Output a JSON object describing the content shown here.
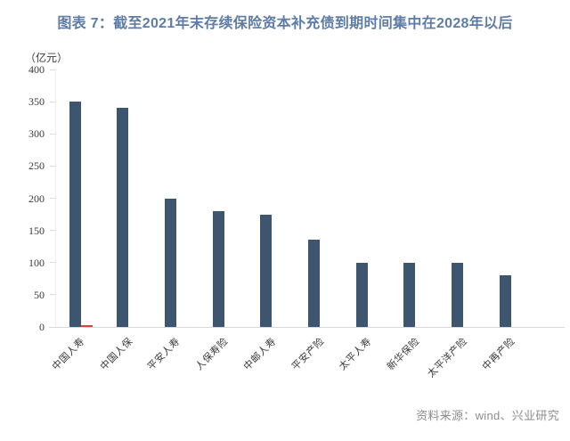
{
  "chart": {
    "title": "图表 7：截至2021年末存续保险资本补充债到期时间集中在2028年以后",
    "unit_label": "（亿元）",
    "source": "资料来源：wind、兴业研究"
  },
  "chart_data": {
    "type": "bar",
    "title": "截至2021年末存续保险资本补充债到期时间集中在2028年以后",
    "ylabel": "（亿元）",
    "ylim": [
      0,
      400
    ],
    "yticks": [
      0,
      50,
      100,
      150,
      200,
      250,
      300,
      350,
      400
    ],
    "grid": false,
    "legend": "none",
    "categories": [
      "中国人寿",
      "中国人保",
      "平安人寿",
      "人保寿险",
      "中邮人寿",
      "平安产险",
      "太平人寿",
      "新华保险",
      "太平洋产险",
      "中再产险"
    ],
    "series": [
      {
        "color": "#3e5570",
        "values": [
          350,
          340,
          200,
          180,
          175,
          135,
          100,
          100,
          100,
          80
        ]
      },
      {
        "color": "#d6453a",
        "values": [
          3,
          0,
          0,
          0,
          0,
          0,
          0,
          0,
          0,
          0
        ]
      }
    ]
  }
}
